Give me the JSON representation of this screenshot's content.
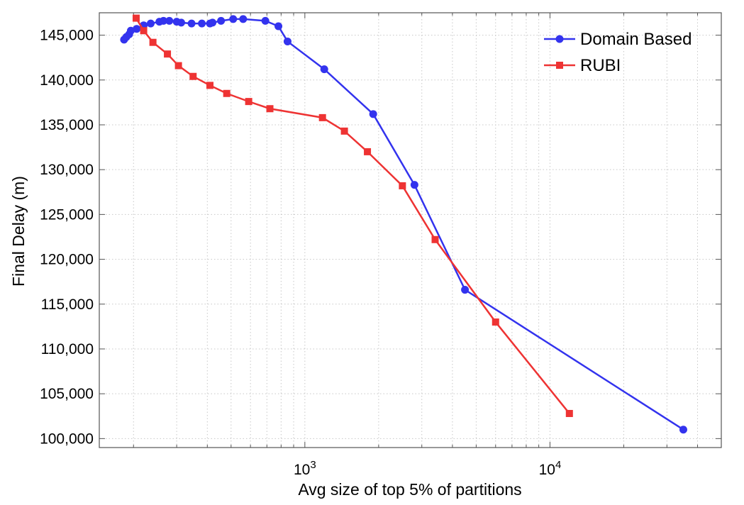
{
  "chart_data": {
    "type": "line",
    "xlabel": "Avg size of top 5% of partitions",
    "ylabel": "Final Delay (m)",
    "xscale": "log",
    "xlim": [
      145,
      50000
    ],
    "ylim": [
      99000,
      147500
    ],
    "grid": true,
    "legend_position": "top-right",
    "y_ticks": [
      100000,
      105000,
      110000,
      115000,
      120000,
      125000,
      130000,
      135000,
      140000,
      145000
    ],
    "y_tick_labels": [
      "100,000",
      "105,000",
      "110,000",
      "115,000",
      "120,000",
      "125,000",
      "130,000",
      "135,000",
      "140,000",
      "145,000"
    ],
    "x_tick_major": [
      {
        "value": 1000,
        "base": "10",
        "exp": "3"
      },
      {
        "value": 10000,
        "base": "10",
        "exp": "4"
      }
    ],
    "series": [
      {
        "name": "Domain Based",
        "color": "#3333ee",
        "marker": "circle",
        "points": [
          [
            183,
            144500
          ],
          [
            187,
            144800
          ],
          [
            192,
            145100
          ],
          [
            195,
            145500
          ],
          [
            206,
            145700
          ],
          [
            220,
            146100
          ],
          [
            235,
            146300
          ],
          [
            255,
            146500
          ],
          [
            265,
            146600
          ],
          [
            280,
            146600
          ],
          [
            300,
            146500
          ],
          [
            313,
            146400
          ],
          [
            345,
            146300
          ],
          [
            380,
            146300
          ],
          [
            410,
            146300
          ],
          [
            420,
            146400
          ],
          [
            455,
            146600
          ],
          [
            510,
            146800
          ],
          [
            560,
            146800
          ],
          [
            690,
            146600
          ],
          [
            780,
            146000
          ],
          [
            850,
            144300
          ],
          [
            1200,
            141200
          ],
          [
            1900,
            136200
          ],
          [
            2800,
            128300
          ],
          [
            4500,
            116600
          ],
          [
            35000,
            101000
          ]
        ]
      },
      {
        "name": "RUBI",
        "color": "#ee3333",
        "marker": "square",
        "points": [
          [
            205,
            146900
          ],
          [
            220,
            145500
          ],
          [
            240,
            144200
          ],
          [
            275,
            142900
          ],
          [
            305,
            141600
          ],
          [
            350,
            140400
          ],
          [
            410,
            139400
          ],
          [
            480,
            138500
          ],
          [
            590,
            137600
          ],
          [
            720,
            136800
          ],
          [
            1180,
            135800
          ],
          [
            1450,
            134300
          ],
          [
            1800,
            132000
          ],
          [
            2500,
            128200
          ],
          [
            3400,
            122200
          ],
          [
            6000,
            113000
          ],
          [
            12000,
            102800
          ]
        ]
      }
    ]
  }
}
